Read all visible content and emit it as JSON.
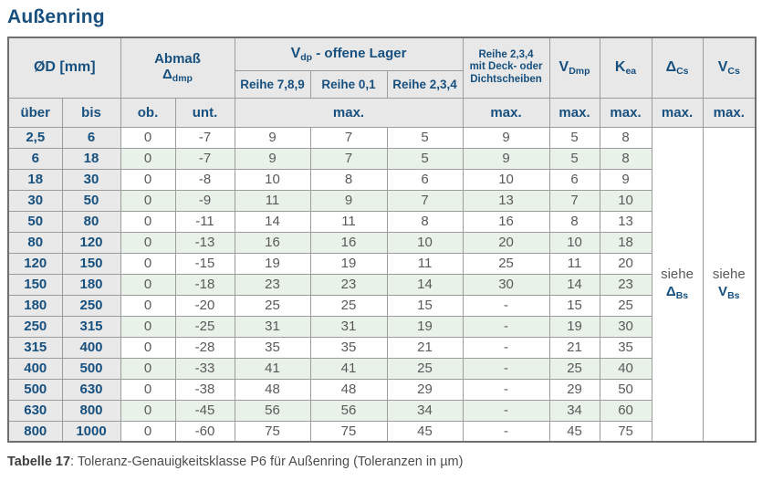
{
  "page": {
    "title": "Außenring"
  },
  "table": {
    "header": {
      "d_label": "ØD  [mm]",
      "abmass": {
        "line1": "Abmaß",
        "sym": "Δ",
        "sub": "dmp"
      },
      "vdp": {
        "base": "V",
        "sub": "dp",
        "rest": " -  offene Lager"
      },
      "reihe789": "Reihe 7,8,9",
      "reihe01": "Reihe 0,1",
      "reihe234": "Reihe 2,3,4",
      "deck": {
        "line1": "Reihe 2,3,4",
        "line2": "mit Deck- oder",
        "line3": "Dichtscheiben"
      },
      "vdmp": {
        "base": "V",
        "sub": "Dmp"
      },
      "kea": {
        "base": "K",
        "sub": "ea"
      },
      "dcs": {
        "base": "Δ",
        "sub": "Cs"
      },
      "vcs": {
        "base": "V",
        "sub": "Cs"
      },
      "ueber": "über",
      "bis": "bis",
      "ob": "ob.",
      "unt": "unt.",
      "max": "max."
    },
    "see": {
      "dcs": {
        "word": "siehe",
        "base": "Δ",
        "sub": "Bs"
      },
      "vcs": {
        "word": "siehe",
        "base": "V",
        "sub": "Bs"
      }
    },
    "rows": [
      {
        "ueber": "2,5",
        "bis": "6",
        "ob": "0",
        "unt": "-7",
        "r789": "9",
        "r01": "7",
        "r234": "5",
        "deck": "9",
        "vdmp": "5",
        "kea": "8"
      },
      {
        "ueber": "6",
        "bis": "18",
        "ob": "0",
        "unt": "-7",
        "r789": "9",
        "r01": "7",
        "r234": "5",
        "deck": "9",
        "vdmp": "5",
        "kea": "8"
      },
      {
        "ueber": "18",
        "bis": "30",
        "ob": "0",
        "unt": "-8",
        "r789": "10",
        "r01": "8",
        "r234": "6",
        "deck": "10",
        "vdmp": "6",
        "kea": "9"
      },
      {
        "ueber": "30",
        "bis": "50",
        "ob": "0",
        "unt": "-9",
        "r789": "11",
        "r01": "9",
        "r234": "7",
        "deck": "13",
        "vdmp": "7",
        "kea": "10"
      },
      {
        "ueber": "50",
        "bis": "80",
        "ob": "0",
        "unt": "-11",
        "r789": "14",
        "r01": "11",
        "r234": "8",
        "deck": "16",
        "vdmp": "8",
        "kea": "13"
      },
      {
        "ueber": "80",
        "bis": "120",
        "ob": "0",
        "unt": "-13",
        "r789": "16",
        "r01": "16",
        "r234": "10",
        "deck": "20",
        "vdmp": "10",
        "kea": "18"
      },
      {
        "ueber": "120",
        "bis": "150",
        "ob": "0",
        "unt": "-15",
        "r789": "19",
        "r01": "19",
        "r234": "11",
        "deck": "25",
        "vdmp": "11",
        "kea": "20"
      },
      {
        "ueber": "150",
        "bis": "180",
        "ob": "0",
        "unt": "-18",
        "r789": "23",
        "r01": "23",
        "r234": "14",
        "deck": "30",
        "vdmp": "14",
        "kea": "23"
      },
      {
        "ueber": "180",
        "bis": "250",
        "ob": "0",
        "unt": "-20",
        "r789": "25",
        "r01": "25",
        "r234": "15",
        "deck": "-",
        "vdmp": "15",
        "kea": "25"
      },
      {
        "ueber": "250",
        "bis": "315",
        "ob": "0",
        "unt": "-25",
        "r789": "31",
        "r01": "31",
        "r234": "19",
        "deck": "-",
        "vdmp": "19",
        "kea": "30"
      },
      {
        "ueber": "315",
        "bis": "400",
        "ob": "0",
        "unt": "-28",
        "r789": "35",
        "r01": "35",
        "r234": "21",
        "deck": "-",
        "vdmp": "21",
        "kea": "35"
      },
      {
        "ueber": "400",
        "bis": "500",
        "ob": "0",
        "unt": "-33",
        "r789": "41",
        "r01": "41",
        "r234": "25",
        "deck": "-",
        "vdmp": "25",
        "kea": "40"
      },
      {
        "ueber": "500",
        "bis": "630",
        "ob": "0",
        "unt": "-38",
        "r789": "48",
        "r01": "48",
        "r234": "29",
        "deck": "-",
        "vdmp": "29",
        "kea": "50"
      },
      {
        "ueber": "630",
        "bis": "800",
        "ob": "0",
        "unt": "-45",
        "r789": "56",
        "r01": "56",
        "r234": "34",
        "deck": "-",
        "vdmp": "34",
        "kea": "60"
      },
      {
        "ueber": "800",
        "bis": "1000",
        "ob": "0",
        "unt": "-60",
        "r789": "75",
        "r01": "75",
        "r234": "45",
        "deck": "-",
        "vdmp": "45",
        "kea": "75"
      }
    ]
  },
  "caption": {
    "bold": "Tabelle 17",
    "text": ": Toleranz-Genauigkeitsklasse P6 für Außenring (Toleranzen in µm)"
  }
}
